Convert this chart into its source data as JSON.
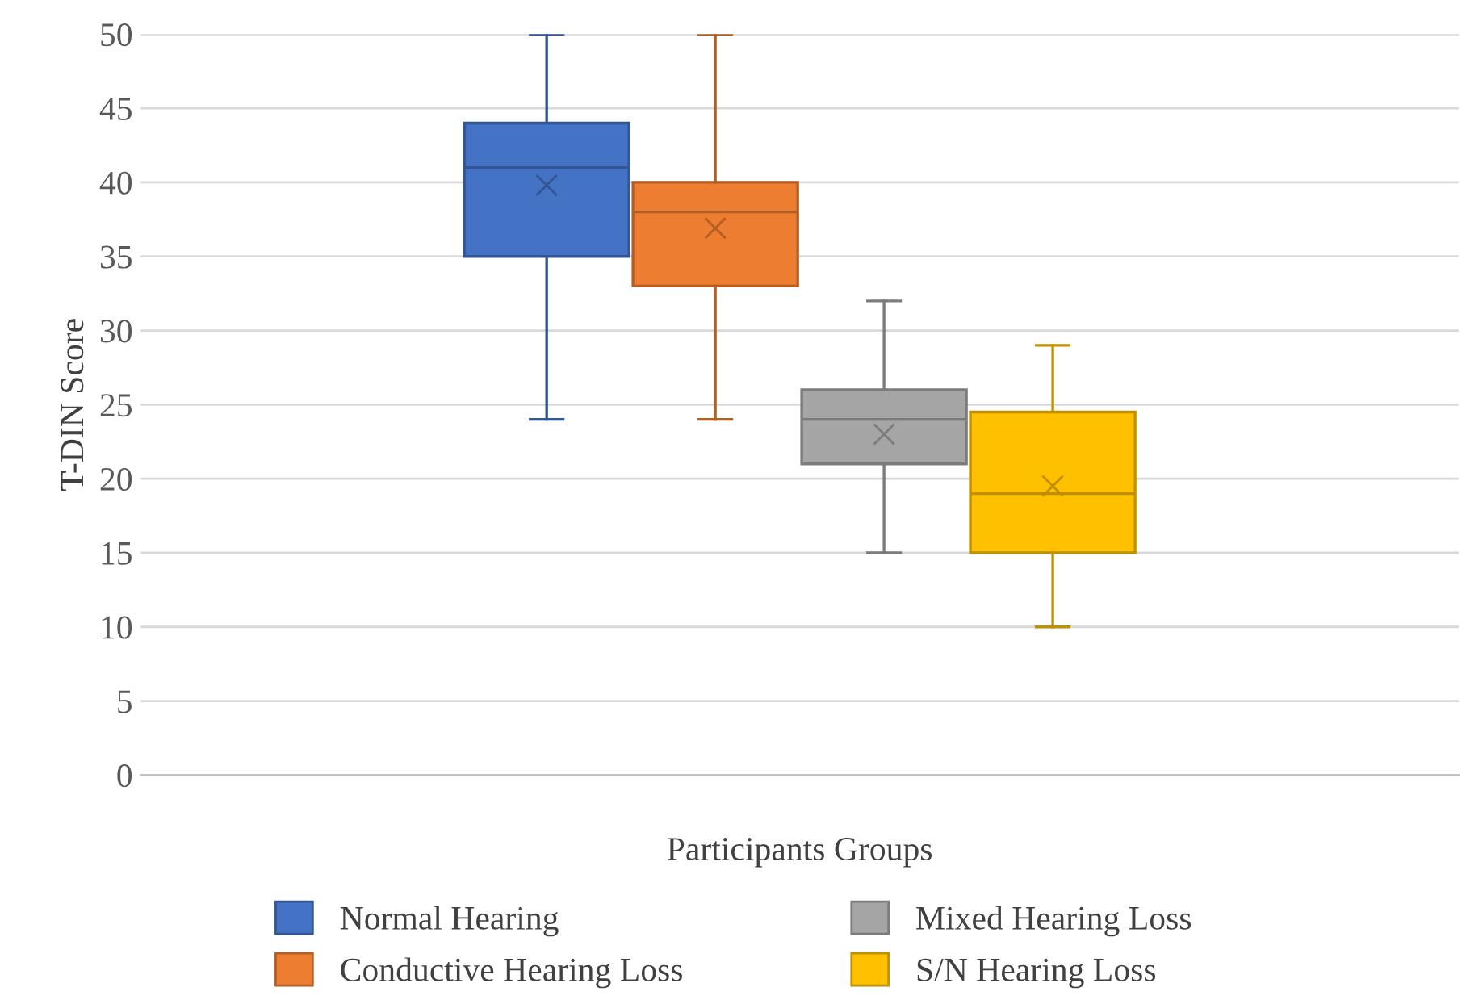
{
  "chart_data": {
    "type": "box",
    "xlabel": "Participants Groups",
    "ylabel": "T-DIN Score",
    "categories": [
      null
    ],
    "series": [
      {
        "name": "Normal Hearing",
        "color": "#4472c4",
        "boxes": [
          {
            "low": 24,
            "q1": 35,
            "median": 41,
            "q3": 44,
            "high": 50,
            "mean": 39.8
          }
        ]
      },
      {
        "name": "Conductive Hearing Loss",
        "color": "#ed7d31",
        "boxes": [
          {
            "low": 24,
            "q1": 33,
            "median": 38,
            "q3": 40,
            "high": 50,
            "mean": 36.9
          }
        ]
      },
      {
        "name": "Mixed Hearing Loss",
        "color": "#a5a5a5",
        "boxes": [
          {
            "low": 15,
            "q1": 21,
            "median": 24,
            "q3": 26,
            "high": 32,
            "mean": 23.0
          }
        ]
      },
      {
        "name": "S/N Hearing Loss",
        "color": "#ffc000",
        "boxes": [
          {
            "low": 10,
            "q1": 15,
            "median": 19,
            "q3": 24.5,
            "high": 29,
            "mean": 19.5
          }
        ]
      }
    ],
    "ylim": [
      0,
      50
    ],
    "yticks": [
      0,
      5,
      10,
      15,
      20,
      25,
      30,
      35,
      40,
      45,
      50
    ],
    "grid": "y",
    "legend": "bottom",
    "marker": "cross"
  }
}
